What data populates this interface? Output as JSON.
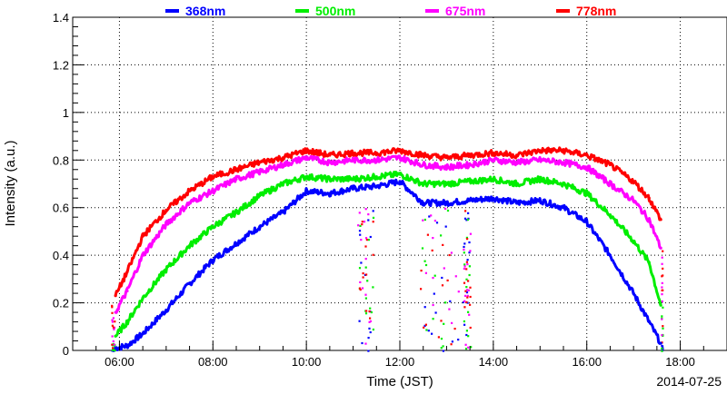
{
  "chart_data": {
    "type": "scatter",
    "xlabel": "Time (JST)",
    "ylabel": "Intensity (a.u.)",
    "date": "2014-07-25",
    "xlim": [
      "05:00",
      "19:00"
    ],
    "ylim": [
      0,
      1.4
    ],
    "x_ticks": [
      "06:00",
      "08:00",
      "10:00",
      "12:00",
      "14:00",
      "16:00",
      "18:00"
    ],
    "y_ticks": [
      "0",
      "0.2",
      "0.4",
      "0.6",
      "0.8",
      "1",
      "1.2",
      "1.4"
    ],
    "grid": true,
    "legend_position": "top",
    "series": [
      {
        "name": "368nm",
        "color": "#0000ff",
        "x": [
          "05:55",
          "06:10",
          "06:30",
          "07:00",
          "07:30",
          "08:00",
          "08:30",
          "09:00",
          "09:30",
          "10:00",
          "10:30",
          "11:00",
          "11:30",
          "12:00",
          "12:30",
          "13:00",
          "13:30",
          "14:00",
          "14:30",
          "15:00",
          "15:30",
          "16:00",
          "16:30",
          "17:00",
          "17:20",
          "17:35"
        ],
        "values": [
          0.01,
          0.02,
          0.07,
          0.17,
          0.28,
          0.38,
          0.45,
          0.52,
          0.58,
          0.67,
          0.66,
          0.68,
          0.69,
          0.71,
          0.62,
          0.62,
          0.63,
          0.64,
          0.62,
          0.63,
          0.6,
          0.54,
          0.4,
          0.24,
          0.12,
          0.03
        ]
      },
      {
        "name": "500nm",
        "color": "#00ee00",
        "x": [
          "05:55",
          "06:10",
          "06:30",
          "07:00",
          "07:30",
          "08:00",
          "08:30",
          "09:00",
          "09:30",
          "10:00",
          "10:30",
          "11:00",
          "11:30",
          "12:00",
          "12:30",
          "13:00",
          "13:30",
          "14:00",
          "14:30",
          "15:00",
          "15:30",
          "16:00",
          "16:30",
          "17:00",
          "17:20",
          "17:35"
        ],
        "values": [
          0.06,
          0.12,
          0.22,
          0.34,
          0.44,
          0.52,
          0.58,
          0.65,
          0.7,
          0.73,
          0.72,
          0.72,
          0.73,
          0.74,
          0.7,
          0.7,
          0.71,
          0.72,
          0.7,
          0.72,
          0.7,
          0.66,
          0.57,
          0.46,
          0.37,
          0.19
        ]
      },
      {
        "name": "675nm",
        "color": "#ff00ff",
        "x": [
          "05:55",
          "06:10",
          "06:30",
          "07:00",
          "07:30",
          "08:00",
          "08:30",
          "09:00",
          "09:30",
          "10:00",
          "10:30",
          "11:00",
          "11:30",
          "12:00",
          "12:30",
          "13:00",
          "13:30",
          "14:00",
          "14:30",
          "15:00",
          "15:30",
          "16:00",
          "16:30",
          "17:00",
          "17:20",
          "17:35"
        ],
        "values": [
          0.16,
          0.25,
          0.4,
          0.53,
          0.62,
          0.67,
          0.72,
          0.75,
          0.78,
          0.81,
          0.79,
          0.8,
          0.8,
          0.81,
          0.78,
          0.77,
          0.78,
          0.8,
          0.79,
          0.8,
          0.79,
          0.77,
          0.7,
          0.63,
          0.55,
          0.43
        ]
      },
      {
        "name": "778nm",
        "color": "#ff0000",
        "x": [
          "05:55",
          "06:10",
          "06:30",
          "07:00",
          "07:30",
          "08:00",
          "08:30",
          "09:00",
          "09:30",
          "10:00",
          "10:30",
          "11:00",
          "11:30",
          "12:00",
          "12:30",
          "13:00",
          "13:30",
          "14:00",
          "14:30",
          "15:00",
          "15:30",
          "16:00",
          "16:30",
          "17:00",
          "17:20",
          "17:35"
        ],
        "values": [
          0.23,
          0.33,
          0.48,
          0.59,
          0.67,
          0.73,
          0.76,
          0.79,
          0.81,
          0.84,
          0.82,
          0.83,
          0.83,
          0.84,
          0.82,
          0.81,
          0.82,
          0.83,
          0.82,
          0.84,
          0.84,
          0.82,
          0.78,
          0.71,
          0.64,
          0.55
        ]
      }
    ]
  }
}
